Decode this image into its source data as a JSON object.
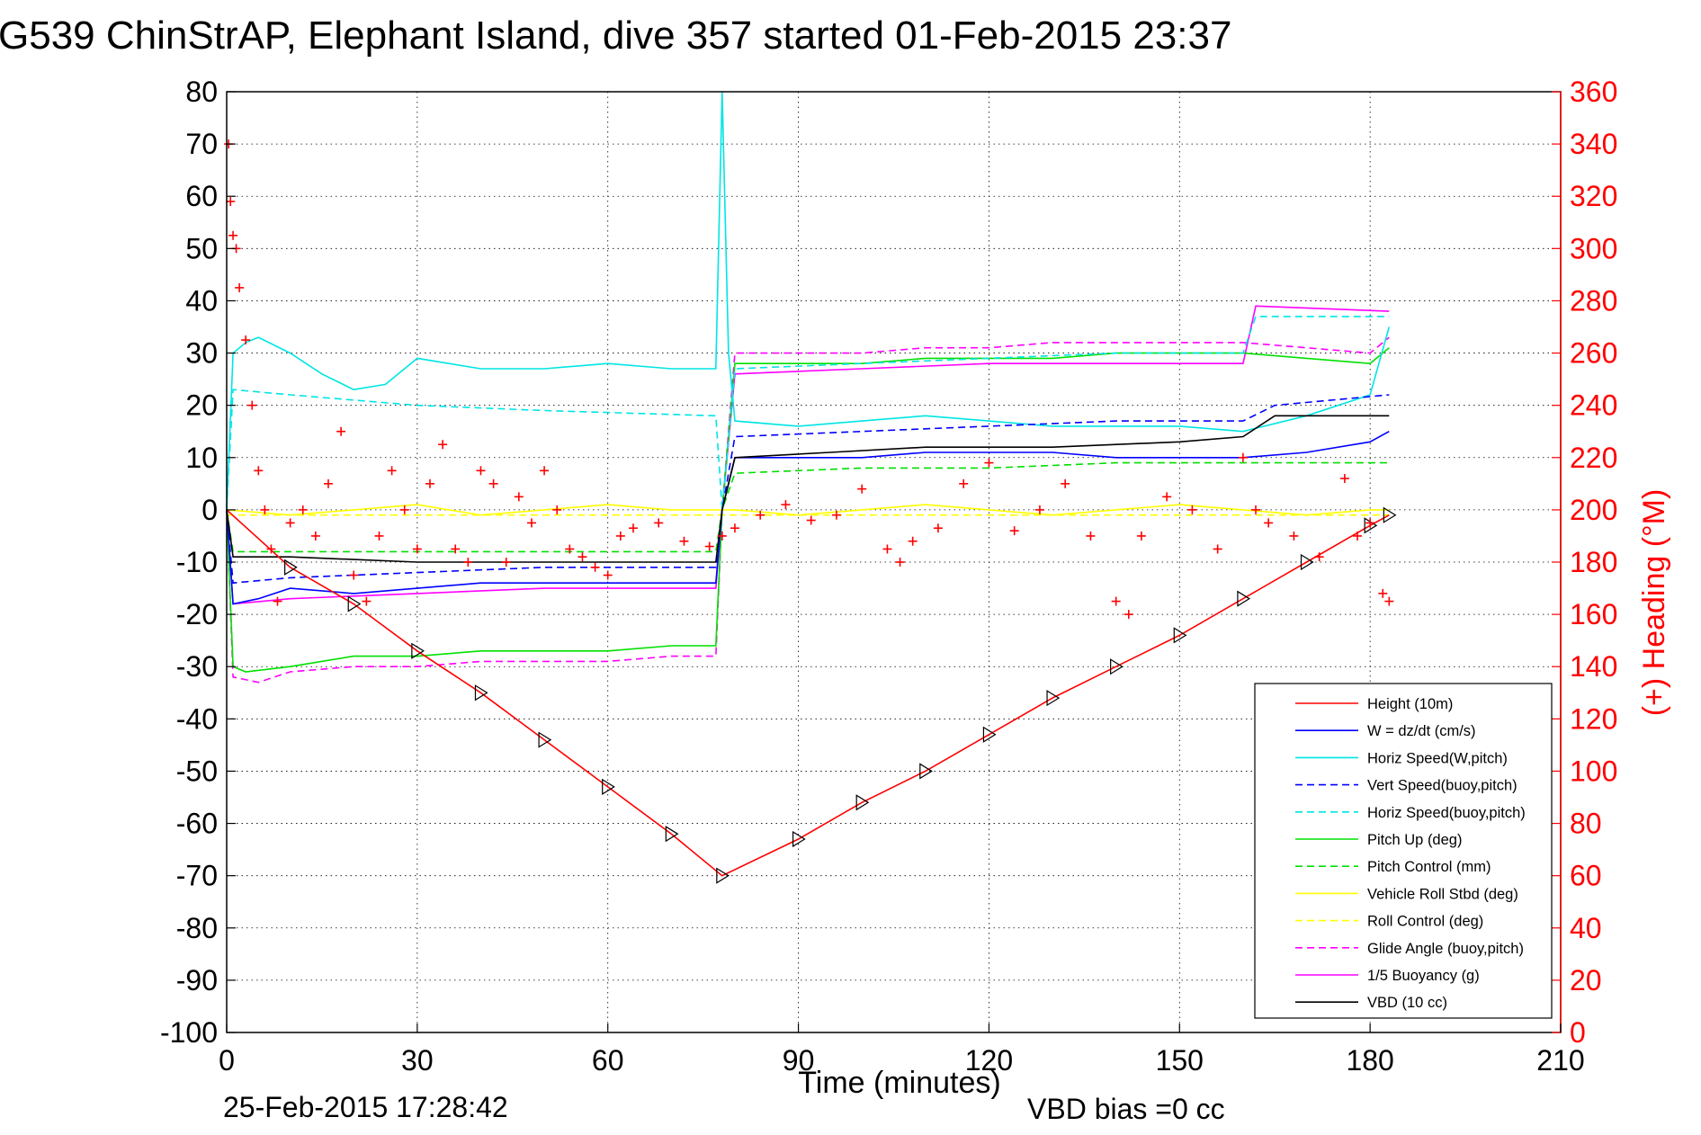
{
  "chart_data": {
    "type": "line",
    "title": "G539 ChinStrAP, Elephant Island, dive 357 started 01-Feb-2015 23:37",
    "xlabel": "Time (minutes)",
    "ylabel": "",
    "y2label": "(+) Heading (°M)",
    "xlim": [
      0,
      210
    ],
    "ylim": [
      -100,
      80
    ],
    "y2lim": [
      0,
      360
    ],
    "xticks": [
      "0",
      "30",
      "60",
      "90",
      "120",
      "150",
      "180",
      "210"
    ],
    "yticks": [
      "80",
      "70",
      "60",
      "50",
      "40",
      "30",
      "20",
      "10",
      "0",
      "-10",
      "-20",
      "-30",
      "-40",
      "-50",
      "-60",
      "-70",
      "-80",
      "-90",
      "-100"
    ],
    "y2ticks": [
      "360",
      "340",
      "320",
      "300",
      "280",
      "260",
      "240",
      "220",
      "200",
      "180",
      "160",
      "140",
      "120",
      "100",
      "80",
      "60",
      "40",
      "20",
      "0"
    ],
    "grid": true,
    "legend_position": "bottom-right",
    "footer_left": "25-Feb-2015 17:28:42",
    "footer_right": "VBD bias =0 cc",
    "series": [
      {
        "name": "Height (10m)",
        "color": "#ff0000",
        "style": "solid",
        "x": [
          0,
          10,
          20,
          30,
          40,
          50,
          60,
          70,
          78,
          90,
          100,
          110,
          120,
          130,
          140,
          150,
          160,
          170,
          180,
          183
        ],
        "y": [
          0,
          -11,
          -18,
          -27,
          -35,
          -44,
          -53,
          -62,
          -70,
          -63,
          -56,
          -50,
          -43,
          -36,
          -30,
          -24,
          -17,
          -10,
          -3,
          -1
        ]
      },
      {
        "name": "W = dz/dt (cm/s)",
        "color": "#0000ff",
        "style": "solid",
        "x": [
          0,
          1,
          5,
          10,
          20,
          30,
          40,
          50,
          60,
          70,
          77,
          78,
          80,
          90,
          100,
          110,
          120,
          130,
          140,
          150,
          160,
          170,
          180,
          183
        ],
        "y": [
          0,
          -18,
          -17,
          -15,
          -16,
          -15,
          -14,
          -14,
          -14,
          -14,
          -14,
          0,
          10,
          10,
          10,
          11,
          11,
          11,
          10,
          10,
          10,
          11,
          13,
          15
        ]
      },
      {
        "name": "Horiz Speed(W,pitch)",
        "color": "#00e5e5",
        "style": "solid",
        "x": [
          0,
          1,
          3,
          5,
          10,
          15,
          20,
          25,
          30,
          40,
          50,
          60,
          70,
          77,
          78,
          79,
          80,
          90,
          100,
          110,
          120,
          130,
          140,
          150,
          160,
          170,
          180,
          183
        ],
        "y": [
          0,
          30,
          32,
          33,
          30,
          26,
          23,
          24,
          29,
          27,
          27,
          28,
          27,
          27,
          80,
          30,
          17,
          16,
          17,
          18,
          17,
          16,
          16,
          16,
          15,
          18,
          22,
          35
        ]
      },
      {
        "name": "Vert Speed(buoy,pitch)",
        "color": "#0000ff",
        "style": "dashed",
        "x": [
          0,
          1,
          10,
          30,
          50,
          77,
          78,
          80,
          100,
          120,
          140,
          160,
          165,
          183
        ],
        "y": [
          0,
          -14,
          -13,
          -12,
          -11,
          -11,
          0,
          14,
          15,
          16,
          17,
          17,
          20,
          22
        ]
      },
      {
        "name": "Horiz Speed(buoy,pitch)",
        "color": "#00e5e5",
        "style": "dashed",
        "x": [
          0,
          1,
          10,
          30,
          50,
          77,
          78,
          80,
          100,
          120,
          140,
          160,
          162,
          183
        ],
        "y": [
          0,
          23,
          22,
          20,
          19,
          18,
          0,
          27,
          28,
          29,
          30,
          30,
          37,
          37
        ]
      },
      {
        "name": "Pitch Up (deg)",
        "color": "#00e000",
        "style": "solid",
        "x": [
          0,
          1,
          3,
          10,
          20,
          30,
          40,
          50,
          60,
          70,
          77,
          78,
          80,
          90,
          100,
          110,
          120,
          130,
          140,
          150,
          160,
          170,
          180,
          183
        ],
        "y": [
          0,
          -30,
          -31,
          -30,
          -28,
          -28,
          -27,
          -27,
          -27,
          -26,
          -26,
          0,
          28,
          28,
          28,
          29,
          29,
          29,
          30,
          30,
          30,
          29,
          28,
          31
        ]
      },
      {
        "name": "Pitch Control (mm)",
        "color": "#00e000",
        "style": "dashed",
        "x": [
          0,
          1,
          10,
          30,
          50,
          77,
          78,
          80,
          100,
          120,
          140,
          160,
          183
        ],
        "y": [
          0,
          -8,
          -8,
          -8,
          -8,
          -8,
          0,
          7,
          8,
          8,
          9,
          9,
          9
        ]
      },
      {
        "name": "Vehicle Roll Stbd (deg)",
        "color": "#ffff00",
        "style": "solid",
        "x": [
          0,
          10,
          20,
          30,
          40,
          50,
          60,
          70,
          80,
          90,
          100,
          110,
          120,
          130,
          140,
          150,
          160,
          170,
          180,
          183
        ],
        "y": [
          0,
          -1,
          0,
          1,
          -1,
          0,
          1,
          0,
          0,
          -1,
          0,
          1,
          0,
          -1,
          0,
          1,
          0,
          -1,
          0,
          0
        ]
      },
      {
        "name": "Roll Control (deg)",
        "color": "#ffff00",
        "style": "dashed",
        "x": [
          0,
          10,
          20,
          30,
          40,
          50,
          60,
          70,
          80,
          90,
          100,
          110,
          120,
          130,
          140,
          150,
          160,
          170,
          180,
          183
        ],
        "y": [
          -1,
          -1,
          -1,
          -1,
          -1,
          -1,
          -1,
          -1,
          -1,
          -1,
          -1,
          -1,
          -1,
          -1,
          -1,
          -1,
          -1,
          -1,
          -1,
          -1
        ]
      },
      {
        "name": "Glide Angle (buoy,pitch)",
        "color": "#ff00ff",
        "style": "dashed",
        "x": [
          0,
          1,
          5,
          10,
          20,
          30,
          40,
          50,
          60,
          70,
          77,
          78,
          80,
          90,
          100,
          110,
          120,
          130,
          140,
          150,
          160,
          170,
          180,
          183
        ],
        "y": [
          0,
          -32,
          -33,
          -31,
          -30,
          -30,
          -29,
          -29,
          -29,
          -28,
          -28,
          0,
          30,
          30,
          30,
          31,
          31,
          32,
          32,
          32,
          32,
          31,
          30,
          33
        ]
      },
      {
        "name": "1/5 Buoyancy (g)",
        "color": "#ff00ff",
        "style": "solid",
        "x": [
          0,
          1,
          10,
          30,
          50,
          77,
          78,
          80,
          100,
          120,
          140,
          160,
          162,
          183
        ],
        "y": [
          0,
          -18,
          -17,
          -16,
          -15,
          -15,
          0,
          26,
          27,
          28,
          28,
          28,
          39,
          38
        ]
      },
      {
        "name": "VBD (10 cc)",
        "color": "#000000",
        "style": "solid",
        "x": [
          0,
          1,
          10,
          30,
          50,
          77,
          78,
          80,
          95,
          110,
          130,
          150,
          160,
          165,
          183
        ],
        "y": [
          0,
          -9,
          -9,
          -10,
          -10,
          -10,
          0,
          10,
          11,
          12,
          12,
          13,
          14,
          18,
          18
        ]
      }
    ],
    "heading_series": {
      "name": "Heading",
      "axis": "right",
      "color": "#ff0000",
      "marker": "+",
      "x": [
        0.3,
        0.6,
        1,
        1.5,
        2,
        3,
        4,
        5,
        6,
        7,
        8,
        10,
        12,
        14,
        16,
        18,
        20,
        22,
        24,
        26,
        28,
        30,
        32,
        34,
        36,
        38,
        40,
        42,
        44,
        46,
        48,
        50,
        52,
        54,
        56,
        58,
        60,
        62,
        64,
        68,
        72,
        76,
        78,
        80,
        84,
        88,
        92,
        96,
        100,
        104,
        106,
        108,
        112,
        116,
        120,
        124,
        128,
        132,
        136,
        140,
        142,
        144,
        148,
        152,
        156,
        160,
        162,
        164,
        168,
        172,
        176,
        178,
        180,
        182,
        183
      ],
      "y": [
        340,
        318,
        305,
        300,
        285,
        265,
        240,
        215,
        200,
        185,
        165,
        195,
        200,
        190,
        210,
        230,
        175,
        165,
        190,
        215,
        200,
        185,
        210,
        225,
        185,
        180,
        215,
        210,
        180,
        205,
        195,
        215,
        200,
        185,
        182,
        178,
        175,
        190,
        193,
        195,
        188,
        186,
        190,
        193,
        198,
        202,
        196,
        198,
        208,
        185,
        180,
        188,
        193,
        210,
        218,
        192,
        200,
        210,
        190,
        165,
        160,
        190,
        205,
        200,
        185,
        220,
        200,
        195,
        190,
        182,
        212,
        190,
        195,
        168,
        165
      ]
    }
  },
  "legend": {
    "items": [
      {
        "label": "Height (10m)",
        "color": "#ff0000",
        "style": "solid"
      },
      {
        "label": "W = dz/dt (cm/s)",
        "color": "#0000ff",
        "style": "solid"
      },
      {
        "label": "Horiz Speed(W,pitch)",
        "color": "#00e5e5",
        "style": "solid"
      },
      {
        "label": "Vert Speed(buoy,pitch)",
        "color": "#0000ff",
        "style": "dashed"
      },
      {
        "label": "Horiz Speed(buoy,pitch)",
        "color": "#00e5e5",
        "style": "dashed"
      },
      {
        "label": "Pitch Up (deg)",
        "color": "#00e000",
        "style": "solid"
      },
      {
        "label": "Pitch Control (mm)",
        "color": "#00e000",
        "style": "dashed"
      },
      {
        "label": "Vehicle Roll Stbd (deg)",
        "color": "#ffff00",
        "style": "solid"
      },
      {
        "label": "Roll Control (deg)",
        "color": "#ffff00",
        "style": "dashed"
      },
      {
        "label": "Glide Angle (buoy,pitch)",
        "color": "#ff00ff",
        "style": "dashed"
      },
      {
        "label": "1/5 Buoyancy (g)",
        "color": "#ff00ff",
        "style": "solid"
      },
      {
        "label": "VBD (10 cc)",
        "color": "#000000",
        "style": "solid"
      }
    ]
  }
}
